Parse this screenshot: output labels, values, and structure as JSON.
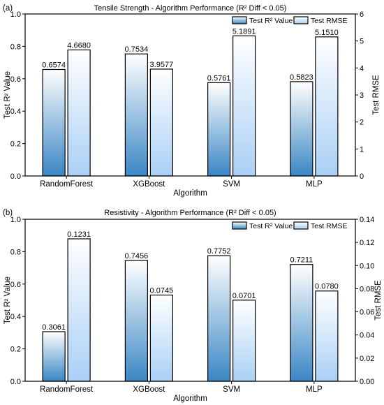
{
  "chart_data": [
    {
      "type": "bar",
      "panel_label": "(a)",
      "title": "Tensile Strength - Algorithm Performance (R² Diff < 0.05)",
      "categories": [
        "RandomForest",
        "XGBoost",
        "SVM",
        "MLP"
      ],
      "xlabel": "Algorithm",
      "ylabel": "Test R² Value",
      "y2label": "Test RMSE",
      "ylim": [
        0,
        1.0
      ],
      "y2lim": [
        0,
        6
      ],
      "yticks": [
        "0.0",
        "0.2",
        "0.4",
        "0.6",
        "0.8",
        "1.0"
      ],
      "y2ticks": [
        "0",
        "1",
        "2",
        "3",
        "4",
        "5",
        "6"
      ],
      "legend_position": "top-right",
      "series": [
        {
          "name": "Test R² Value",
          "axis": "left",
          "values": [
            0.6574,
            0.7534,
            0.5761,
            0.5823
          ],
          "labels": [
            "0.6574",
            "0.7534",
            "0.5761",
            "0.5823"
          ],
          "color_top": "#ffffff",
          "color_bottom": "#3a86c4"
        },
        {
          "name": "Test RMSE",
          "axis": "right",
          "values": [
            4.668,
            3.9577,
            5.1891,
            5.151
          ],
          "labels": [
            "4.6680",
            "3.9577",
            "5.1891",
            "5.1510"
          ],
          "color_top": "#ffffff",
          "color_bottom": "#a9d0f5"
        }
      ]
    },
    {
      "type": "bar",
      "panel_label": "(b)",
      "title": "Resistivity - Algorithm Performance (R² Diff < 0.05)",
      "categories": [
        "RandomForest",
        "XGBoost",
        "SVM",
        "MLP"
      ],
      "xlabel": "Algorithm",
      "ylabel": "Test R² Value",
      "y2label": "Test RMSE",
      "ylim": [
        0,
        1.0
      ],
      "y2lim": [
        0,
        0.14
      ],
      "yticks": [
        "0.0",
        "0.2",
        "0.4",
        "0.6",
        "0.8",
        "1.0"
      ],
      "y2ticks": [
        "0.00",
        "0.02",
        "0.04",
        "0.06",
        "0.08",
        "0.10",
        "0.12",
        "0.14"
      ],
      "legend_position": "top-right",
      "series": [
        {
          "name": "Test R² Value",
          "axis": "left",
          "values": [
            0.3061,
            0.7456,
            0.7752,
            0.7211
          ],
          "labels": [
            "0.3061",
            "0.7456",
            "0.7752",
            "0.7211"
          ],
          "color_top": "#ffffff",
          "color_bottom": "#3a86c4"
        },
        {
          "name": "Test RMSE",
          "axis": "right",
          "values": [
            0.1231,
            0.0745,
            0.0701,
            0.078
          ],
          "labels": [
            "0.1231",
            "0.0745",
            "0.0701",
            "0.0780"
          ],
          "color_top": "#ffffff",
          "color_bottom": "#a9d0f5"
        }
      ]
    }
  ]
}
